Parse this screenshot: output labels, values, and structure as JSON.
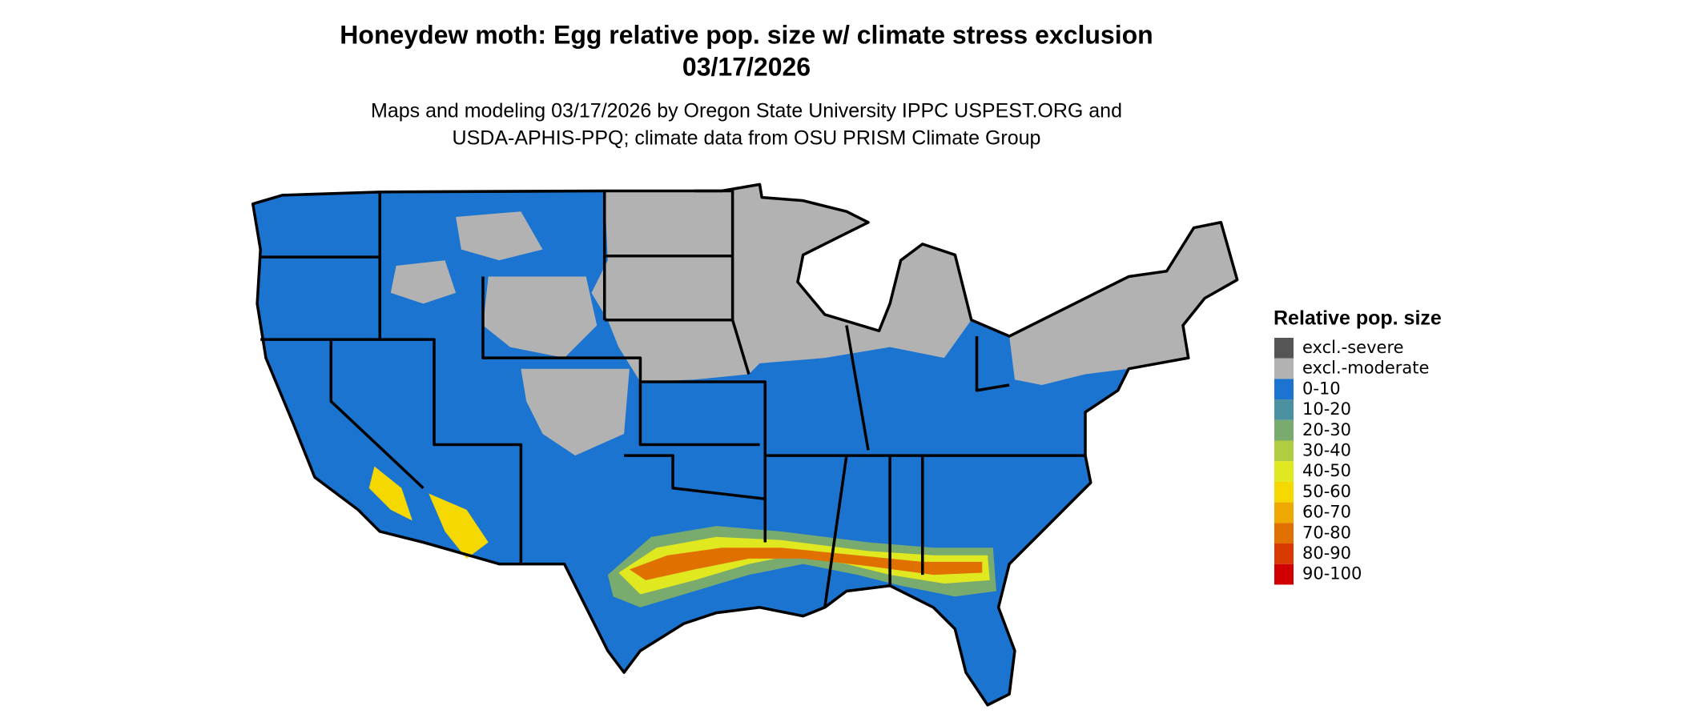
{
  "header": {
    "title_line1": "Honeydew moth: Egg relative pop. size w/ climate stress exclusion",
    "title_line2": "03/17/2026",
    "subtitle_line1": "Maps and modeling 03/17/2026 by Oregon State University IPPC USPEST.ORG and",
    "subtitle_line2": "USDA-APHIS-PPQ; climate data from OSU PRISM Climate Group"
  },
  "legend": {
    "title": "Relative pop. size",
    "items": [
      {
        "label": "excl.-severe",
        "color": "#555555"
      },
      {
        "label": "excl.-moderate",
        "color": "#b2b2b2"
      },
      {
        "label": "0-10",
        "color": "#1b74d0"
      },
      {
        "label": "10-20",
        "color": "#4a90a0"
      },
      {
        "label": "20-30",
        "color": "#7aab6e"
      },
      {
        "label": "30-40",
        "color": "#b0cc40"
      },
      {
        "label": "40-50",
        "color": "#e0e820"
      },
      {
        "label": "50-60",
        "color": "#f5d800"
      },
      {
        "label": "60-70",
        "color": "#eea800"
      },
      {
        "label": "70-80",
        "color": "#e07000"
      },
      {
        "label": "80-90",
        "color": "#d83a00"
      },
      {
        "label": "90-100",
        "color": "#d00000"
      }
    ]
  }
}
